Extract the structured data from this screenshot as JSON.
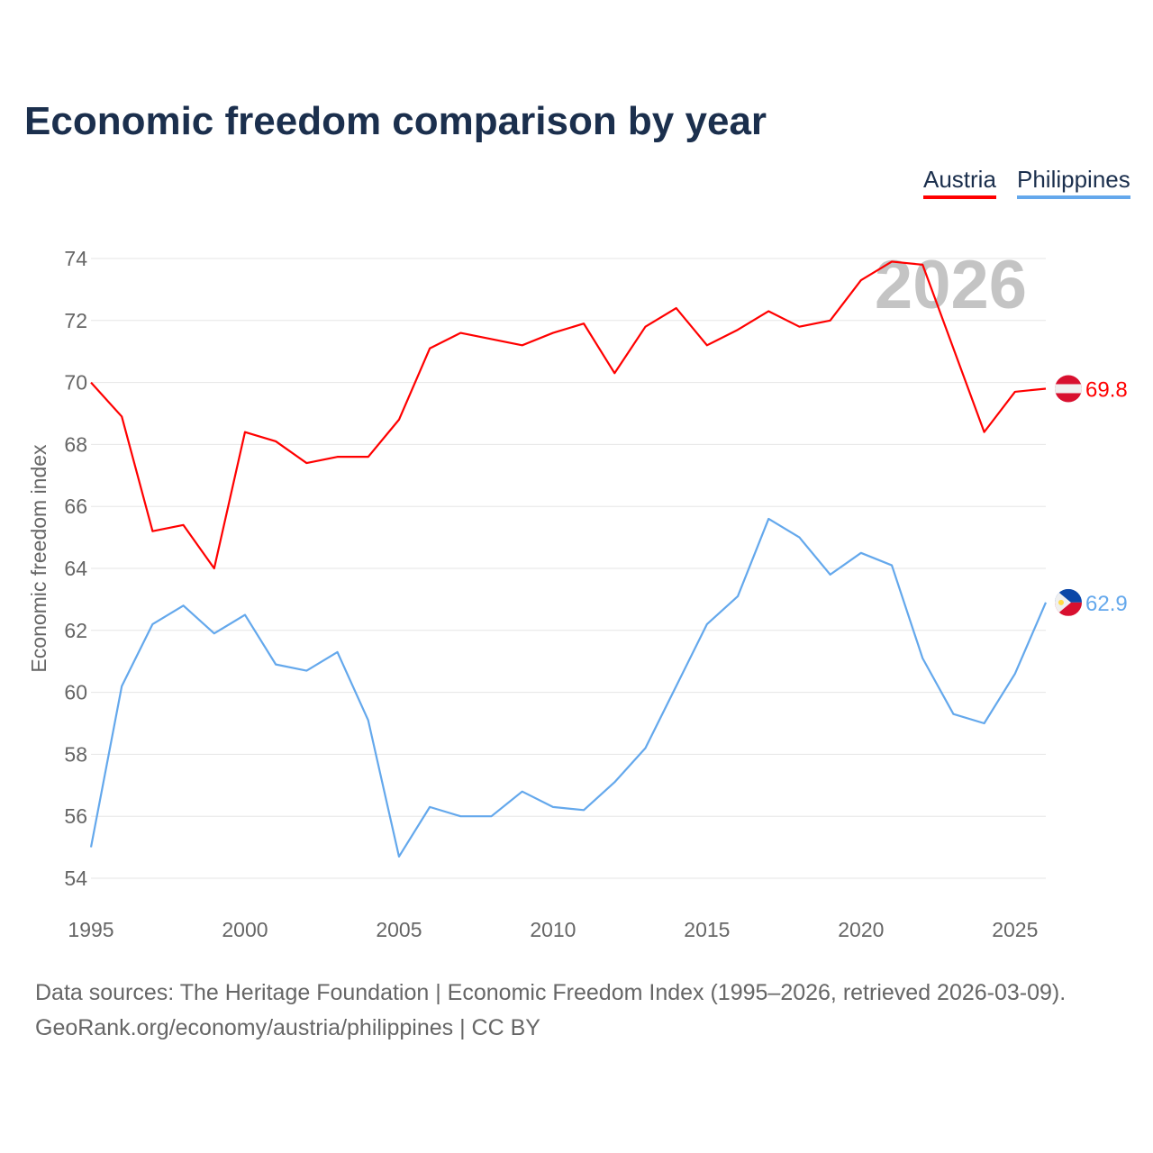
{
  "title": "Economic freedom comparison by year",
  "footer": {
    "line1": "Data sources: The Heritage Foundation | Economic Freedom Index (1995–2026, retrieved 2026-03-09).",
    "line2": "GeoRank.org/economy/austria/philippines | CC BY"
  },
  "chart_data": {
    "type": "line",
    "title": "Economic freedom comparison by year",
    "xlabel": "",
    "ylabel": "Economic freedom index",
    "watermark_year": "2026",
    "xlim": [
      1995,
      2026
    ],
    "ylim": [
      54,
      74
    ],
    "x_ticks": [
      1995,
      2000,
      2005,
      2010,
      2015,
      2020,
      2025
    ],
    "y_ticks": [
      54,
      56,
      58,
      60,
      62,
      64,
      66,
      68,
      70,
      72,
      74
    ],
    "grid": true,
    "legend_position": "top-right",
    "x": [
      1995,
      1996,
      1997,
      1998,
      1999,
      2000,
      2001,
      2002,
      2003,
      2004,
      2005,
      2006,
      2007,
      2008,
      2009,
      2010,
      2011,
      2012,
      2013,
      2014,
      2015,
      2016,
      2017,
      2018,
      2019,
      2020,
      2021,
      2022,
      2023,
      2024,
      2025,
      2026
    ],
    "series": [
      {
        "name": "Austria",
        "color": "#ff0000",
        "flag": "austria-flag",
        "end_label": "69.8",
        "values": [
          70.0,
          68.9,
          65.2,
          65.4,
          64.0,
          68.4,
          68.1,
          67.4,
          67.6,
          67.6,
          68.8,
          71.1,
          71.6,
          71.4,
          71.2,
          71.6,
          71.9,
          70.3,
          71.8,
          72.4,
          71.2,
          71.7,
          72.3,
          71.8,
          72.0,
          73.3,
          73.9,
          73.8,
          71.1,
          68.4,
          69.7,
          69.8
        ]
      },
      {
        "name": "Philippines",
        "color": "#64a8ec",
        "flag": "philippines-flag",
        "end_label": "62.9",
        "values": [
          55.0,
          60.2,
          62.2,
          62.8,
          61.9,
          62.5,
          60.9,
          60.7,
          61.3,
          59.1,
          54.7,
          56.3,
          56.0,
          56.0,
          56.8,
          56.3,
          56.2,
          57.1,
          58.2,
          60.2,
          62.2,
          63.1,
          65.6,
          65.0,
          63.8,
          64.5,
          64.1,
          61.1,
          59.3,
          59.0,
          60.6,
          62.9
        ]
      }
    ]
  }
}
